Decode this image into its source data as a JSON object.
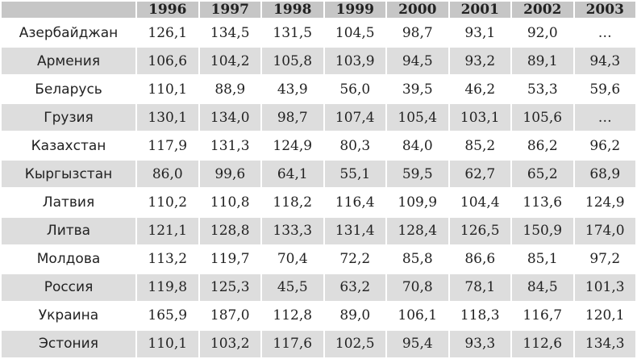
{
  "table": {
    "columns": [
      "1996",
      "1997",
      "1998",
      "1999",
      "2000",
      "2001",
      "2002",
      "2003"
    ],
    "rows": [
      {
        "country": "Азербайджан",
        "values": [
          "126,1",
          "134,5",
          "131,5",
          "104,5",
          "98,7",
          "93,1",
          "92,0",
          "…"
        ]
      },
      {
        "country": "Армения",
        "values": [
          "106,6",
          "104,2",
          "105,8",
          "103,9",
          "94,5",
          "93,2",
          "89,1",
          "94,3"
        ]
      },
      {
        "country": "Беларусь",
        "values": [
          "110,1",
          "88,9",
          "43,9",
          "56,0",
          "39,5",
          "46,2",
          "53,3",
          "59,6"
        ]
      },
      {
        "country": "Грузия",
        "values": [
          "130,1",
          "134,0",
          "98,7",
          "107,4",
          "105,4",
          "103,1",
          "105,6",
          "…"
        ]
      },
      {
        "country": "Казахстан",
        "values": [
          "117,9",
          "131,3",
          "124,9",
          "80,3",
          "84,0",
          "85,2",
          "86,2",
          "96,2"
        ]
      },
      {
        "country": "Кыргызстан",
        "values": [
          "86,0",
          "99,6",
          "64,1",
          "55,1",
          "59,5",
          "62,7",
          "65,2",
          "68,9"
        ]
      },
      {
        "country": "Латвия",
        "values": [
          "110,2",
          "110,8",
          "118,2",
          "116,4",
          "109,9",
          "104,4",
          "113,6",
          "124,9"
        ]
      },
      {
        "country": "Литва",
        "values": [
          "121,1",
          "128,8",
          "133,3",
          "131,4",
          "128,4",
          "126,5",
          "150,9",
          "174,0"
        ]
      },
      {
        "country": "Молдова",
        "values": [
          "113,2",
          "119,7",
          "70,4",
          "72,2",
          "85,8",
          "86,6",
          "85,1",
          "97,2"
        ]
      },
      {
        "country": "Россия",
        "values": [
          "119,8",
          "125,3",
          "45,5",
          "63,2",
          "70,8",
          "78,1",
          "84,5",
          "101,3"
        ]
      },
      {
        "country": "Украина",
        "values": [
          "165,9",
          "187,0",
          "112,8",
          "89,0",
          "106,1",
          "118,3",
          "116,7",
          "120,1"
        ]
      },
      {
        "country": "Эстония",
        "values": [
          "110,1",
          "103,2",
          "117,6",
          "102,5",
          "95,4",
          "93,3",
          "112,6",
          "134,3"
        ]
      }
    ]
  }
}
